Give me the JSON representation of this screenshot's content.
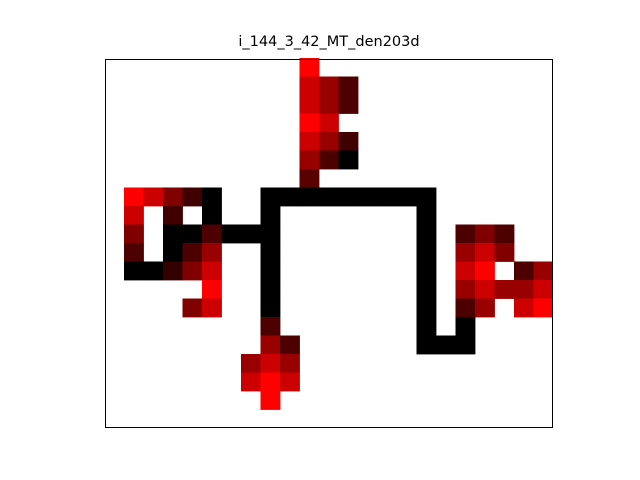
{
  "chart_data": {
    "type": "heatmap",
    "title": "i_144_3_42_MT_den203d",
    "xlabel": "",
    "ylabel": "",
    "grid": false,
    "colormap": "black-to-red",
    "grid_size": {
      "cols": 23,
      "rows": 19
    },
    "cells": [
      {
        "c": 9,
        "r": 0,
        "v": 1.0
      },
      {
        "c": 9,
        "r": 1,
        "v": 0.8
      },
      {
        "c": 10,
        "r": 1,
        "v": 0.6
      },
      {
        "c": 11,
        "r": 1,
        "v": 0.3
      },
      {
        "c": 9,
        "r": 2,
        "v": 0.8
      },
      {
        "c": 10,
        "r": 2,
        "v": 0.6
      },
      {
        "c": 11,
        "r": 2,
        "v": 0.3
      },
      {
        "c": 9,
        "r": 3,
        "v": 1.0
      },
      {
        "c": 10,
        "r": 3,
        "v": 0.8
      },
      {
        "c": 9,
        "r": 4,
        "v": 0.8
      },
      {
        "c": 10,
        "r": 4,
        "v": 0.6
      },
      {
        "c": 11,
        "r": 4,
        "v": 0.25
      },
      {
        "c": 9,
        "r": 5,
        "v": 0.6
      },
      {
        "c": 10,
        "r": 5,
        "v": 0.3
      },
      {
        "c": 11,
        "r": 5,
        "v": 0.0
      },
      {
        "c": 9,
        "r": 6,
        "v": 0.35
      },
      {
        "c": 7,
        "r": 7,
        "v": 0.0
      },
      {
        "c": 8,
        "r": 7,
        "v": 0.0
      },
      {
        "c": 9,
        "r": 7,
        "v": 0.0
      },
      {
        "c": 10,
        "r": 7,
        "v": 0.0
      },
      {
        "c": 11,
        "r": 7,
        "v": 0.0
      },
      {
        "c": 12,
        "r": 7,
        "v": 0.0
      },
      {
        "c": 13,
        "r": 7,
        "v": 0.0
      },
      {
        "c": 14,
        "r": 7,
        "v": 0.0
      },
      {
        "c": 15,
        "r": 7,
        "v": 0.0
      },
      {
        "c": 0,
        "r": 7,
        "v": 1.0
      },
      {
        "c": 1,
        "r": 7,
        "v": 0.8
      },
      {
        "c": 2,
        "r": 7,
        "v": 0.5
      },
      {
        "c": 3,
        "r": 7,
        "v": 0.25
      },
      {
        "c": 4,
        "r": 7,
        "v": 0.0
      },
      {
        "c": 0,
        "r": 8,
        "v": 0.8
      },
      {
        "c": 2,
        "r": 8,
        "v": 0.25
      },
      {
        "c": 4,
        "r": 8,
        "v": 0.0
      },
      {
        "c": 7,
        "r": 8,
        "v": 0.0
      },
      {
        "c": 15,
        "r": 8,
        "v": 0.0
      },
      {
        "c": 0,
        "r": 9,
        "v": 0.5
      },
      {
        "c": 2,
        "r": 9,
        "v": 0.0
      },
      {
        "c": 3,
        "r": 9,
        "v": 0.0
      },
      {
        "c": 4,
        "r": 9,
        "v": 0.3
      },
      {
        "c": 5,
        "r": 9,
        "v": 0.0
      },
      {
        "c": 6,
        "r": 9,
        "v": 0.0
      },
      {
        "c": 7,
        "r": 9,
        "v": 0.0
      },
      {
        "c": 15,
        "r": 9,
        "v": 0.0
      },
      {
        "c": 17,
        "r": 9,
        "v": 0.3
      },
      {
        "c": 18,
        "r": 9,
        "v": 0.5
      },
      {
        "c": 19,
        "r": 9,
        "v": 0.3
      },
      {
        "c": 0,
        "r": 10,
        "v": 0.3
      },
      {
        "c": 2,
        "r": 10,
        "v": 0.0
      },
      {
        "c": 3,
        "r": 10,
        "v": 0.3
      },
      {
        "c": 4,
        "r": 10,
        "v": 0.6
      },
      {
        "c": 7,
        "r": 10,
        "v": 0.0
      },
      {
        "c": 15,
        "r": 10,
        "v": 0.0
      },
      {
        "c": 17,
        "r": 10,
        "v": 0.6
      },
      {
        "c": 18,
        "r": 10,
        "v": 0.8
      },
      {
        "c": 19,
        "r": 10,
        "v": 0.5
      },
      {
        "c": 0,
        "r": 11,
        "v": 0.0
      },
      {
        "c": 1,
        "r": 11,
        "v": 0.0
      },
      {
        "c": 2,
        "r": 11,
        "v": 0.2
      },
      {
        "c": 3,
        "r": 11,
        "v": 0.5
      },
      {
        "c": 4,
        "r": 11,
        "v": 0.8
      },
      {
        "c": 7,
        "r": 11,
        "v": 0.0
      },
      {
        "c": 15,
        "r": 11,
        "v": 0.0
      },
      {
        "c": 17,
        "r": 11,
        "v": 0.8
      },
      {
        "c": 18,
        "r": 11,
        "v": 1.0
      },
      {
        "c": 20,
        "r": 11,
        "v": 0.3
      },
      {
        "c": 21,
        "r": 11,
        "v": 0.6
      },
      {
        "c": 4,
        "r": 12,
        "v": 1.0
      },
      {
        "c": 7,
        "r": 12,
        "v": 0.0
      },
      {
        "c": 15,
        "r": 12,
        "v": 0.0
      },
      {
        "c": 17,
        "r": 12,
        "v": 0.6
      },
      {
        "c": 18,
        "r": 12,
        "v": 0.8
      },
      {
        "c": 19,
        "r": 12,
        "v": 0.6
      },
      {
        "c": 20,
        "r": 12,
        "v": 0.6
      },
      {
        "c": 21,
        "r": 12,
        "v": 0.8
      },
      {
        "c": 3,
        "r": 13,
        "v": 0.5
      },
      {
        "c": 4,
        "r": 13,
        "v": 0.8
      },
      {
        "c": 7,
        "r": 13,
        "v": 0.0
      },
      {
        "c": 15,
        "r": 13,
        "v": 0.0
      },
      {
        "c": 17,
        "r": 13,
        "v": 0.3
      },
      {
        "c": 18,
        "r": 13,
        "v": 0.6
      },
      {
        "c": 20,
        "r": 13,
        "v": 0.8
      },
      {
        "c": 21,
        "r": 13,
        "v": 1.0
      },
      {
        "c": 7,
        "r": 14,
        "v": 0.3
      },
      {
        "c": 15,
        "r": 14,
        "v": 0.0
      },
      {
        "c": 17,
        "r": 14,
        "v": 0.0
      },
      {
        "c": 7,
        "r": 15,
        "v": 0.6
      },
      {
        "c": 8,
        "r": 15,
        "v": 0.3
      },
      {
        "c": 15,
        "r": 15,
        "v": 0.0
      },
      {
        "c": 16,
        "r": 15,
        "v": 0.0
      },
      {
        "c": 17,
        "r": 15,
        "v": 0.0
      },
      {
        "c": 6,
        "r": 16,
        "v": 0.6
      },
      {
        "c": 7,
        "r": 16,
        "v": 0.8
      },
      {
        "c": 8,
        "r": 16,
        "v": 0.6
      },
      {
        "c": 6,
        "r": 17,
        "v": 0.8
      },
      {
        "c": 7,
        "r": 17,
        "v": 1.0
      },
      {
        "c": 8,
        "r": 17,
        "v": 0.8
      },
      {
        "c": 7,
        "r": 18,
        "v": 1.0
      }
    ]
  }
}
